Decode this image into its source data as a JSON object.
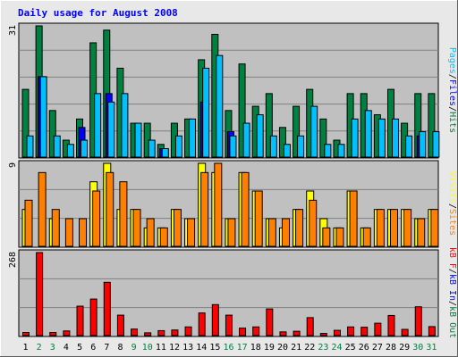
{
  "title": "Daily usage for August 2008",
  "colors": {
    "outer_bg": "#e8e8e8",
    "plot_bg": "#c0c0c0",
    "frame_dark": "#606060",
    "title_text": "#0000ff",
    "hits": "#008040",
    "files": "#0000ff",
    "pages": "#00c0ff",
    "visits": "#ffff00",
    "sites": "#ff8000",
    "kb_f": "#ff0000",
    "kb_in": "#0000ff",
    "kb_out": "#008040",
    "weekend_day": "#008040",
    "weekday": "#000000"
  },
  "side_labels": {
    "top": [
      {
        "text": "Pages",
        "color": "#00c0ff"
      },
      {
        "text": "/",
        "color": "#000000"
      },
      {
        "text": "Files",
        "color": "#0000ff"
      },
      {
        "text": "/",
        "color": "#000000"
      },
      {
        "text": "Hits",
        "color": "#008040"
      }
    ],
    "middle": [
      {
        "text": "Visits",
        "color": "#ffff00"
      },
      {
        "text": "/",
        "color": "#000000"
      },
      {
        "text": "Sites",
        "color": "#ff8000"
      }
    ],
    "bottom": [
      {
        "text": "kB F",
        "color": "#ff0000"
      },
      {
        "text": "/",
        "color": "#000000"
      },
      {
        "text": "kB In",
        "color": "#0000ff"
      },
      {
        "text": "/",
        "color": "#000000"
      },
      {
        "text": "kB Out",
        "color": "#008040"
      }
    ]
  },
  "chart_data": [
    {
      "type": "bar",
      "panel": "hits-files-pages",
      "y_max_label": "31",
      "ylim": [
        0,
        31
      ],
      "categories": [
        "1",
        "2",
        "3",
        "4",
        "5",
        "6",
        "7",
        "8",
        "9",
        "10",
        "11",
        "12",
        "13",
        "14",
        "15",
        "16",
        "17",
        "18",
        "19",
        "20",
        "21",
        "22",
        "23",
        "24",
        "25",
        "26",
        "27",
        "28",
        "29",
        "30",
        "31"
      ],
      "weekend_days": [
        2,
        3,
        9,
        10,
        16,
        17,
        23,
        24,
        30,
        31
      ],
      "series": [
        {
          "name": "Hits",
          "values": [
            16,
            31,
            11,
            4,
            9,
            27,
            30,
            21,
            8,
            8,
            3,
            8,
            9,
            23,
            29,
            11,
            22,
            12,
            15,
            7,
            12,
            16,
            9,
            4,
            15,
            15,
            10,
            16,
            8,
            15,
            15
          ]
        },
        {
          "name": "Files",
          "values": [
            0,
            19,
            0,
            0,
            7,
            0,
            15,
            0,
            0,
            0,
            2,
            0,
            0,
            13,
            0,
            6,
            0,
            0,
            0,
            0,
            0,
            0,
            0,
            0,
            0,
            0,
            0,
            0,
            0,
            5,
            0
          ]
        },
        {
          "name": "Pages",
          "values": [
            5,
            19,
            5,
            3,
            4,
            15,
            13,
            15,
            8,
            4,
            2,
            5,
            9,
            21,
            24,
            5,
            8,
            10,
            5,
            3,
            5,
            12,
            3,
            3,
            9,
            11,
            9,
            9,
            5,
            6,
            6
          ]
        }
      ]
    },
    {
      "type": "bar",
      "panel": "visits-sites",
      "y_max_label": "9",
      "ylim": [
        0,
        9
      ],
      "categories": [
        "1",
        "2",
        "3",
        "4",
        "5",
        "6",
        "7",
        "8",
        "9",
        "10",
        "11",
        "12",
        "13",
        "14",
        "15",
        "16",
        "17",
        "18",
        "19",
        "20",
        "21",
        "22",
        "23",
        "24",
        "25",
        "26",
        "27",
        "28",
        "29",
        "30",
        "31"
      ],
      "series": [
        {
          "name": "Visits",
          "values": [
            4,
            0,
            3,
            0,
            0,
            7,
            9,
            4,
            4,
            2,
            2,
            4,
            3,
            9,
            8,
            3,
            8,
            6,
            3,
            2,
            4,
            6,
            3,
            2,
            6,
            2,
            4,
            4,
            4,
            3,
            4
          ]
        },
        {
          "name": "Sites",
          "values": [
            5,
            8,
            4,
            3,
            3,
            6,
            8,
            7,
            4,
            3,
            2,
            4,
            3,
            8,
            9,
            3,
            8,
            6,
            3,
            3,
            4,
            5,
            2,
            2,
            6,
            2,
            4,
            4,
            4,
            3,
            4
          ]
        }
      ]
    },
    {
      "type": "bar",
      "panel": "kb",
      "y_max_label": "268",
      "ylim": [
        0,
        268
      ],
      "categories": [
        "1",
        "2",
        "3",
        "4",
        "5",
        "6",
        "7",
        "8",
        "9",
        "10",
        "11",
        "12",
        "13",
        "14",
        "15",
        "16",
        "17",
        "18",
        "19",
        "20",
        "21",
        "22",
        "23",
        "24",
        "25",
        "26",
        "27",
        "28",
        "29",
        "30",
        "31"
      ],
      "series": [
        {
          "name": "kB F",
          "values": [
            10,
            268,
            10,
            15,
            95,
            118,
            172,
            66,
            21,
            9,
            16,
            18,
            28,
            73,
            100,
            66,
            24,
            28,
            86,
            12,
            14,
            58,
            7,
            17,
            28,
            27,
            40,
            65,
            20,
            93,
            29
          ]
        }
      ]
    }
  ]
}
